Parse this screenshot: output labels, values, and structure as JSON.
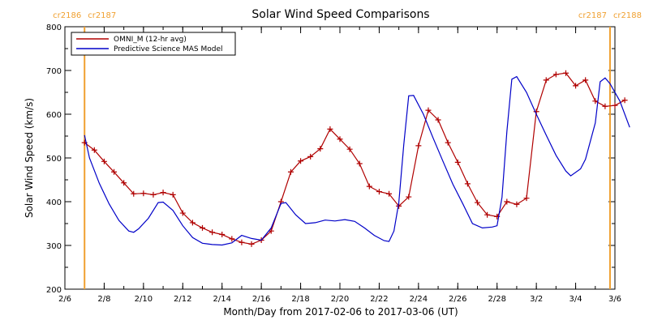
{
  "chart_data": {
    "type": "line",
    "title": "Solar Wind Speed Comparisons",
    "xlabel": "Month/Day from 2017-02-06 to 2017-03-06 (UT)",
    "ylabel": "Solar Wind Speed (km/s)",
    "x_range": [
      "2017-02-06",
      "2017-03-06"
    ],
    "ylim": [
      200,
      800
    ],
    "y_ticks": [
      200,
      300,
      400,
      500,
      600,
      700,
      800
    ],
    "x_ticks": [
      {
        "date": "2017-02-06",
        "label": "2/6"
      },
      {
        "date": "2017-02-08",
        "label": "2/8"
      },
      {
        "date": "2017-02-10",
        "label": "2/10"
      },
      {
        "date": "2017-02-12",
        "label": "2/12"
      },
      {
        "date": "2017-02-14",
        "label": "2/14"
      },
      {
        "date": "2017-02-16",
        "label": "2/16"
      },
      {
        "date": "2017-02-18",
        "label": "2/18"
      },
      {
        "date": "2017-02-20",
        "label": "2/20"
      },
      {
        "date": "2017-02-22",
        "label": "2/22"
      },
      {
        "date": "2017-02-24",
        "label": "2/24"
      },
      {
        "date": "2017-02-26",
        "label": "2/26"
      },
      {
        "date": "2017-02-28",
        "label": "2/28"
      },
      {
        "date": "2017-03-02",
        "label": "3/2"
      },
      {
        "date": "2017-03-04",
        "label": "3/4"
      },
      {
        "date": "2017-03-06",
        "label": "3/6"
      }
    ],
    "carrington_markers": [
      {
        "date": "2017-02-07 00:00",
        "left_label": "cr2186",
        "right_label": "cr2187",
        "color": "#f0a030"
      },
      {
        "date": "2017-03-05 18:00",
        "left_label": "cr2187",
        "right_label": "cr2188",
        "color": "#f0a030"
      }
    ],
    "legend_position": "top-left",
    "series": [
      {
        "name": "OMNI_M (12-hr avg)",
        "color": "#b00000",
        "marker": "plus",
        "points": [
          [
            "2017-02-07 00:00",
            535
          ],
          [
            "2017-02-07 12:00",
            518
          ],
          [
            "2017-02-08 00:00",
            492
          ],
          [
            "2017-02-08 12:00",
            468
          ],
          [
            "2017-02-09 00:00",
            443
          ],
          [
            "2017-02-09 12:00",
            418
          ],
          [
            "2017-02-10 00:00",
            419
          ],
          [
            "2017-02-10 12:00",
            416
          ],
          [
            "2017-02-11 00:00",
            421
          ],
          [
            "2017-02-11 12:00",
            416
          ],
          [
            "2017-02-12 00:00",
            374
          ],
          [
            "2017-02-12 12:00",
            352
          ],
          [
            "2017-02-13 00:00",
            340
          ],
          [
            "2017-02-13 12:00",
            330
          ],
          [
            "2017-02-14 00:00",
            325
          ],
          [
            "2017-02-14 12:00",
            315
          ],
          [
            "2017-02-15 00:00",
            307
          ],
          [
            "2017-02-15 12:00",
            303
          ],
          [
            "2017-02-16 00:00",
            312
          ],
          [
            "2017-02-16 12:00",
            333
          ],
          [
            "2017-02-17 00:00",
            400
          ],
          [
            "2017-02-17 12:00",
            468
          ],
          [
            "2017-02-18 00:00",
            493
          ],
          [
            "2017-02-18 12:00",
            503
          ],
          [
            "2017-02-19 00:00",
            521
          ],
          [
            "2017-02-19 12:00",
            566
          ],
          [
            "2017-02-20 00:00",
            543
          ],
          [
            "2017-02-20 12:00",
            520
          ],
          [
            "2017-02-21 00:00",
            487
          ],
          [
            "2017-02-21 12:00",
            435
          ],
          [
            "2017-02-22 00:00",
            423
          ],
          [
            "2017-02-22 12:00",
            418
          ],
          [
            "2017-02-23 00:00",
            390
          ],
          [
            "2017-02-23 12:00",
            411
          ],
          [
            "2017-02-24 00:00",
            528
          ],
          [
            "2017-02-24 12:00",
            609
          ],
          [
            "2017-02-25 00:00",
            587
          ],
          [
            "2017-02-25 12:00",
            535
          ],
          [
            "2017-02-26 00:00",
            490
          ],
          [
            "2017-02-26 12:00",
            441
          ],
          [
            "2017-02-27 00:00",
            398
          ],
          [
            "2017-02-27 12:00",
            370
          ],
          [
            "2017-02-28 00:00",
            366
          ],
          [
            "2017-02-28 12:00",
            400
          ],
          [
            "2017-03-01 00:00",
            394
          ],
          [
            "2017-03-01 12:00",
            408
          ],
          [
            "2017-03-02 00:00",
            606
          ],
          [
            "2017-03-02 12:00",
            678
          ],
          [
            "2017-03-03 00:00",
            691
          ],
          [
            "2017-03-03 12:00",
            694
          ],
          [
            "2017-03-04 00:00",
            665
          ],
          [
            "2017-03-04 12:00",
            678
          ],
          [
            "2017-03-05 00:00",
            630
          ],
          [
            "2017-03-05 12:00",
            618
          ],
          [
            "2017-03-06 00:00",
            620
          ],
          [
            "2017-03-06 12:00",
            632
          ]
        ]
      },
      {
        "name": "Predictive Science MAS Model",
        "color": "#0000c8",
        "marker": "none",
        "points": [
          [
            "2017-02-07 00:00",
            552
          ],
          [
            "2017-02-07 06:00",
            500
          ],
          [
            "2017-02-07 18:00",
            442
          ],
          [
            "2017-02-08 06:00",
            395
          ],
          [
            "2017-02-08 18:00",
            357
          ],
          [
            "2017-02-09 06:00",
            333
          ],
          [
            "2017-02-09 12:00",
            330
          ],
          [
            "2017-02-09 18:00",
            338
          ],
          [
            "2017-02-10 06:00",
            362
          ],
          [
            "2017-02-10 18:00",
            398
          ],
          [
            "2017-02-11 00:00",
            399
          ],
          [
            "2017-02-11 12:00",
            380
          ],
          [
            "2017-02-12 00:00",
            345
          ],
          [
            "2017-02-12 12:00",
            318
          ],
          [
            "2017-02-13 00:00",
            305
          ],
          [
            "2017-02-13 12:00",
            302
          ],
          [
            "2017-02-14 00:00",
            301
          ],
          [
            "2017-02-14 12:00",
            306
          ],
          [
            "2017-02-15 00:00",
            323
          ],
          [
            "2017-02-15 12:00",
            316
          ],
          [
            "2017-02-16 00:00",
            312
          ],
          [
            "2017-02-16 12:00",
            340
          ],
          [
            "2017-02-17 00:00",
            396
          ],
          [
            "2017-02-17 06:00",
            398
          ],
          [
            "2017-02-17 18:00",
            370
          ],
          [
            "2017-02-18 06:00",
            350
          ],
          [
            "2017-02-18 18:00",
            352
          ],
          [
            "2017-02-19 06:00",
            358
          ],
          [
            "2017-02-19 18:00",
            356
          ],
          [
            "2017-02-20 06:00",
            359
          ],
          [
            "2017-02-20 18:00",
            355
          ],
          [
            "2017-02-21 06:00",
            340
          ],
          [
            "2017-02-21 18:00",
            323
          ],
          [
            "2017-02-22 06:00",
            311
          ],
          [
            "2017-02-22 12:00",
            309
          ],
          [
            "2017-02-22 18:00",
            333
          ],
          [
            "2017-02-23 00:00",
            398
          ],
          [
            "2017-02-23 06:00",
            530
          ],
          [
            "2017-02-23 12:00",
            642
          ],
          [
            "2017-02-23 18:00",
            643
          ],
          [
            "2017-02-24 06:00",
            600
          ],
          [
            "2017-02-24 18:00",
            545
          ],
          [
            "2017-02-25 06:00",
            492
          ],
          [
            "2017-02-25 18:00",
            440
          ],
          [
            "2017-02-26 06:00",
            396
          ],
          [
            "2017-02-26 18:00",
            350
          ],
          [
            "2017-02-27 06:00",
            340
          ],
          [
            "2017-02-27 18:00",
            342
          ],
          [
            "2017-02-28 00:00",
            345
          ],
          [
            "2017-02-28 06:00",
            410
          ],
          [
            "2017-02-28 12:00",
            560
          ],
          [
            "2017-02-28 18:00",
            680
          ],
          [
            "2017-03-01 00:00",
            686
          ],
          [
            "2017-03-01 12:00",
            650
          ],
          [
            "2017-03-02 00:00",
            600
          ],
          [
            "2017-03-02 12:00",
            552
          ],
          [
            "2017-03-03 00:00",
            506
          ],
          [
            "2017-03-03 12:00",
            470
          ],
          [
            "2017-03-03 18:00",
            459
          ],
          [
            "2017-03-04 06:00",
            475
          ],
          [
            "2017-03-04 12:00",
            497
          ],
          [
            "2017-03-05 00:00",
            580
          ],
          [
            "2017-03-05 06:00",
            674
          ],
          [
            "2017-03-05 12:00",
            683
          ],
          [
            "2017-03-05 18:00",
            670
          ],
          [
            "2017-03-06 06:00",
            630
          ],
          [
            "2017-03-06 18:00",
            570
          ]
        ]
      }
    ]
  }
}
